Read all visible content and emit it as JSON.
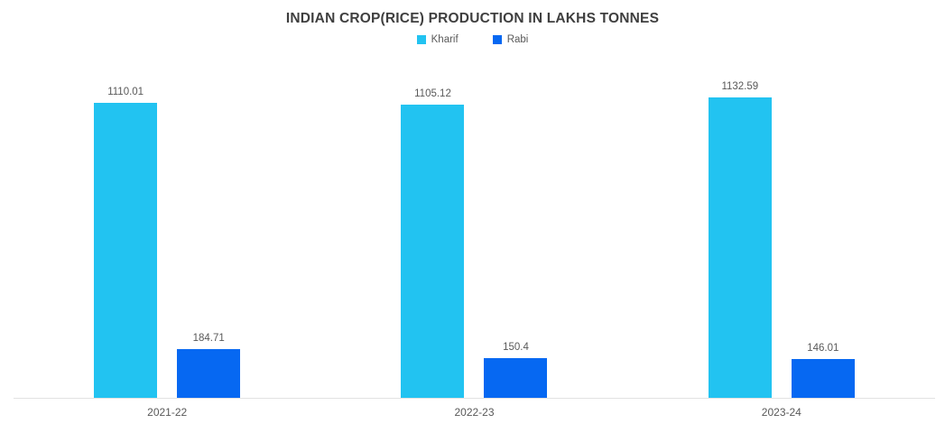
{
  "chart_data": {
    "type": "bar",
    "title": "INDIAN CROP(RICE) PRODUCTION IN LAKHS TONNES",
    "categories": [
      "2021-22",
      "2022-23",
      "2023-24"
    ],
    "series": [
      {
        "name": "Kharif",
        "color": "#22c3f1",
        "values": [
          1110.01,
          1105.12,
          1132.59
        ]
      },
      {
        "name": "Rabi",
        "color": "#0668f2",
        "values": [
          184.71,
          150.4,
          146.01
        ]
      }
    ],
    "xlabel": "",
    "ylabel": "",
    "ylim": [
      0,
      1200
    ],
    "grid": false,
    "legend_position": "top",
    "data_labels_shown": true,
    "colors": {
      "title_text": "#3f3f3f",
      "label_text": "#595959",
      "axis_line": "#e2e2e2",
      "background": "#ffffff"
    }
  }
}
